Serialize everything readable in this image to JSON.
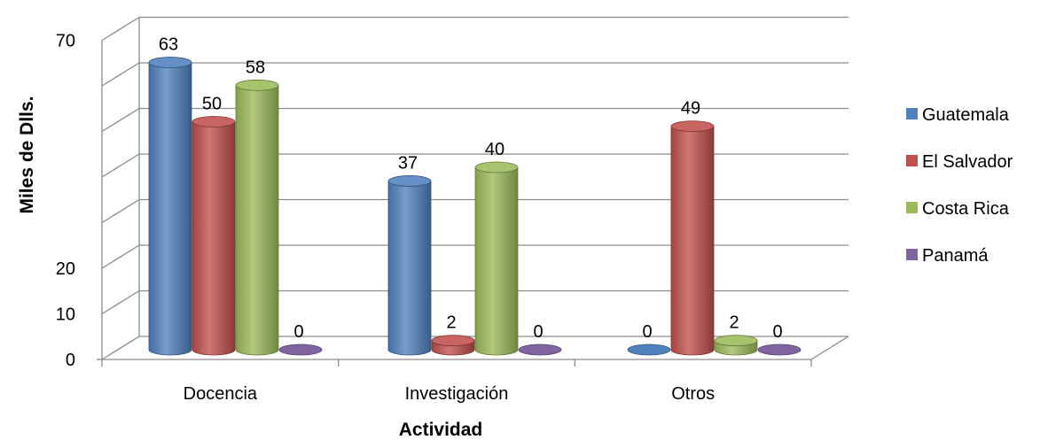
{
  "chart_data": {
    "type": "bar",
    "categories": [
      "Docencia",
      "Investigación",
      "Otros"
    ],
    "series": [
      {
        "name": "Guatemala",
        "values": [
          63,
          37,
          0
        ],
        "color": "#4F81BD"
      },
      {
        "name": "El Salvador",
        "values": [
          50,
          2,
          49
        ],
        "color": "#C0504D"
      },
      {
        "name": "Costa Rica",
        "values": [
          58,
          40,
          2
        ],
        "color": "#9BBB59"
      },
      {
        "name": "Panamá",
        "values": [
          0,
          0,
          0
        ],
        "color": "#8064A2"
      }
    ],
    "y_ticks": [
      "0",
      "10",
      "20",
      "70"
    ],
    "xlabel": "Actividad",
    "ylabel": "Miles de Dlls.",
    "ylim": [
      0,
      70
    ],
    "grid": true,
    "legend": "right",
    "style": "3d-cylinder"
  }
}
